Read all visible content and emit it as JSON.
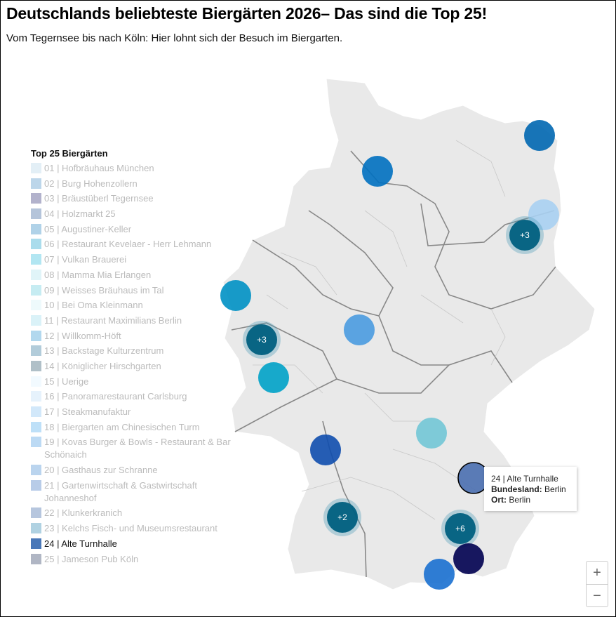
{
  "header": {
    "title": "Deutschlands beliebteste Biergärten 2026– Das sind die Top 25!",
    "subtitle": "Vom Tegernsee bis nach Köln: Hier lohnt sich der Besuch im Biergarten."
  },
  "legend": {
    "title": "Top 25 Biergärten",
    "active_index": 23,
    "items": [
      {
        "label": "01 | Hofbräuhaus München",
        "color": "#e3eff6"
      },
      {
        "label": "02 | Burg Hohenzollern",
        "color": "#bcd6ea"
      },
      {
        "label": "03 | Bräustüberl Tegernsee",
        "color": "#b2b2cc"
      },
      {
        "label": "04 | Holzmarkt 25",
        "color": "#b4c4da"
      },
      {
        "label": "05 | Augustiner-Keller",
        "color": "#b0d2e8"
      },
      {
        "label": "06 | Restaurant Kevelaer - Herr Lehmann",
        "color": "#aadcec"
      },
      {
        "label": "07 | Vulkan Brauerei",
        "color": "#b2e6f2"
      },
      {
        "label": "08 | Mamma Mia Erlangen",
        "color": "#e0f4f8"
      },
      {
        "label": "09 | Weisses Bräuhaus im Tal",
        "color": "#c6ecf2"
      },
      {
        "label": "10 | Bei Oma Kleinmann",
        "color": "#eefafc"
      },
      {
        "label": "11 | Restaurant Maximilians Berlin",
        "color": "#daf2f8"
      },
      {
        "label": "12 | Willkomm-Höft",
        "color": "#b2d8ee"
      },
      {
        "label": "13 | Backstage Kulturzentrum",
        "color": "#b2ccda"
      },
      {
        "label": "14 | Königlicher Hirschgarten",
        "color": "#b0c0c8"
      },
      {
        "label": "15 | Uerige",
        "color": "#f2faff"
      },
      {
        "label": "16 | Panoramarestaurant Carlsburg",
        "color": "#e6f2fc"
      },
      {
        "label": "17 | Steakmanufaktur",
        "color": "#d2e8fa"
      },
      {
        "label": "18 | Biergarten am Chinesischen Turm",
        "color": "#bee0f8"
      },
      {
        "label": "19 | Kovas Burger & Bowls - Restaurant & Bar Schönaich",
        "color": "#bcdaf4"
      },
      {
        "label": "20 | Gasthaus zur Schranne",
        "color": "#bad4ee"
      },
      {
        "label": "21 | Gartenwirtschaft & Gastwirtschaft Johanneshof",
        "color": "#b8cce8"
      },
      {
        "label": "22 | Klunkerkranich",
        "color": "#b6c6de"
      },
      {
        "label": "23 | Kelchs Fisch- und Museumsrestaurant",
        "color": "#b0d2e2"
      },
      {
        "label": "24 | Alte Turnhalle",
        "color": "#4a78b8"
      },
      {
        "label": "25 | Jameson Pub Köln",
        "color": "#b0b6c4"
      }
    ]
  },
  "markers": [
    {
      "color": "#0067b1"
    },
    {
      "color": "#0070c0"
    },
    {
      "color": "#a9d0f2"
    },
    {
      "color": "#005f80",
      "cluster": "+3"
    },
    {
      "color": "#0091c4"
    },
    {
      "color": "#4a9be0"
    },
    {
      "color": "#005f80",
      "cluster": "+3"
    },
    {
      "color": "#00a2c8"
    },
    {
      "color": "#72c6d6"
    },
    {
      "color": "#0f4eae"
    },
    {
      "color": "#4a6fb0",
      "selected": true
    },
    {
      "color": "#005f80",
      "cluster": "+2"
    },
    {
      "color": "#005f80",
      "cluster": "+6"
    },
    {
      "color": "#000050"
    },
    {
      "color": "#1a70d0"
    }
  ],
  "tooltip": {
    "title": "24 | Alte Turnhalle",
    "bundesland_label": "Bundesland:",
    "bundesland": "Berlin",
    "ort_label": "Ort:",
    "ort": "Berlin"
  },
  "zoom": {
    "in": "+",
    "out": "−"
  },
  "map": {
    "land_color": "#e9e9e9",
    "border_color": "#777"
  }
}
